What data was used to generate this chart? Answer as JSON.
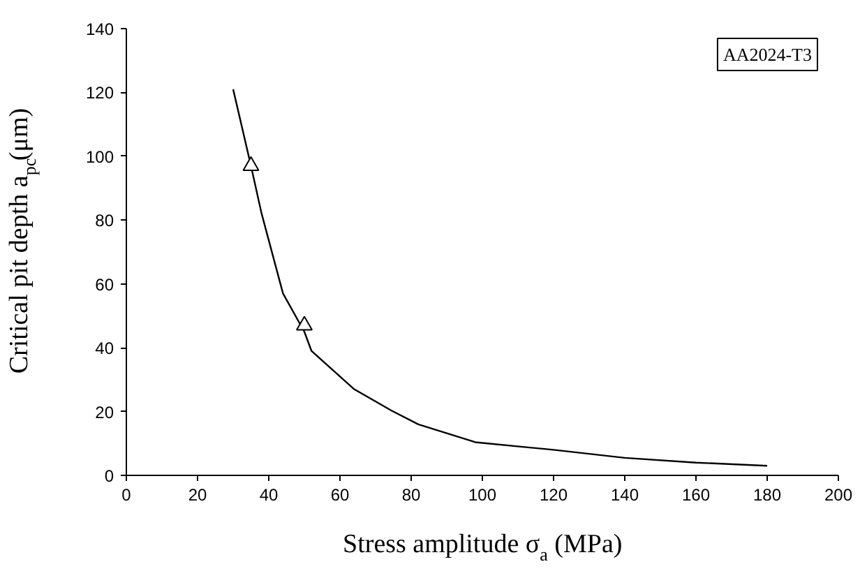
{
  "chart_data": {
    "type": "line",
    "xlabel": "Stress amplitude σ$_{a}$ (MPa)",
    "ylabel": "Critical pit depth a$_{pc}$(μm)",
    "annotations": [
      "AA2024-T3"
    ],
    "series": [
      {
        "color": "#000000",
        "x": [
          30,
          35,
          38,
          44,
          50,
          52,
          64,
          74.5,
          82,
          98,
          120,
          140,
          160,
          180
        ],
        "values": [
          121,
          97,
          82,
          57,
          45,
          39,
          27,
          20.3,
          16,
          10.4,
          8,
          5.5,
          4,
          3
        ],
        "marker": "none"
      },
      {
        "type": "scatter",
        "color": "#000000",
        "x": [
          35,
          50
        ],
        "values": [
          97,
          47
        ],
        "marker": "triangle"
      }
    ],
    "xlim": [
      0,
      200
    ],
    "xticks": [
      0,
      20,
      40,
      60,
      80,
      100,
      120,
      140,
      160,
      180,
      200
    ],
    "ylim": [
      0,
      140
    ],
    "yticks": [
      0,
      20,
      40,
      60,
      80,
      100,
      120,
      140
    ],
    "grid": false
  }
}
